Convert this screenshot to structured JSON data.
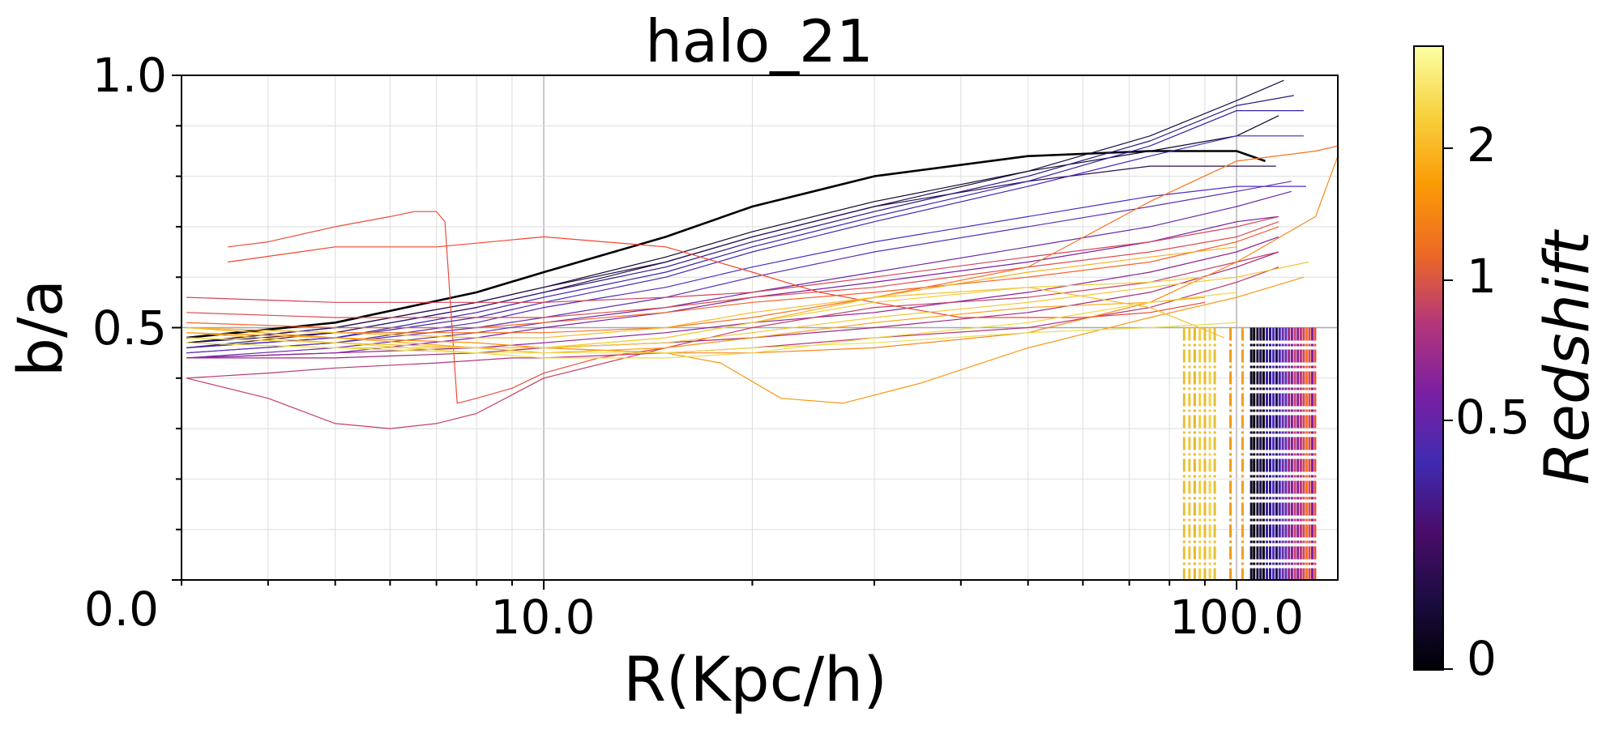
{
  "chart_data": {
    "type": "line",
    "title": "halo_21",
    "xlabel": "R(Kpc/h)",
    "ylabel": "b/a",
    "x_scale": "log",
    "xlim": [
      3.0,
      140.0
    ],
    "ylim": [
      0.0,
      1.0
    ],
    "x_ticks": [
      10.0,
      100.0
    ],
    "x_tick_labels": [
      "10.0",
      "100.0"
    ],
    "y_ticks": [
      0.0,
      0.5,
      1.0
    ],
    "y_tick_labels": [
      "0.0",
      "0.5",
      "1.0"
    ],
    "grid": true,
    "reference_line_y": 0.5,
    "colorbar": {
      "label": "Redshift",
      "tick_labels": [
        "0",
        "0.5",
        "1",
        "2"
      ],
      "range": [
        0,
        2.5
      ],
      "colors": [
        "#000004",
        "#1b0c41",
        "#4a0c6b",
        "#3f2bb0",
        "#7b1fa2",
        "#b5367a",
        "#ed6925",
        "#fb9b06",
        "#f7d13d",
        "#fcffa4"
      ]
    },
    "series": [
      {
        "redshift": 0.0,
        "color": "#000004",
        "width": 2.6,
        "x": [
          3.05,
          5,
          8,
          10,
          15,
          20,
          30,
          50,
          75,
          100,
          110
        ],
        "y": [
          0.48,
          0.51,
          0.57,
          0.61,
          0.68,
          0.74,
          0.8,
          0.84,
          0.85,
          0.85,
          0.83
        ]
      },
      {
        "redshift": 0.05,
        "color": "#0d0829",
        "width": 1.2,
        "x": [
          3.05,
          5,
          8,
          10,
          15,
          20,
          30,
          50,
          75,
          100,
          115
        ],
        "y": [
          0.47,
          0.5,
          0.55,
          0.58,
          0.64,
          0.69,
          0.75,
          0.81,
          0.85,
          0.88,
          0.92
        ]
      },
      {
        "redshift": 0.08,
        "color": "#1b0c41",
        "width": 1.2,
        "x": [
          3.05,
          5,
          8,
          10,
          15,
          20,
          30,
          50,
          75,
          100,
          117
        ],
        "y": [
          0.47,
          0.49,
          0.54,
          0.57,
          0.63,
          0.68,
          0.74,
          0.81,
          0.88,
          0.95,
          0.99
        ]
      },
      {
        "redshift": 0.12,
        "color": "#2a0e55",
        "width": 1.2,
        "x": [
          3.05,
          5,
          8,
          10,
          15,
          20,
          30,
          50,
          75,
          100,
          114
        ],
        "y": [
          0.47,
          0.5,
          0.55,
          0.58,
          0.63,
          0.68,
          0.74,
          0.79,
          0.82,
          0.82,
          0.82
        ]
      },
      {
        "redshift": 0.16,
        "color": "#2b1580",
        "width": 1.2,
        "x": [
          3.05,
          5,
          8,
          10,
          15,
          20,
          30,
          50,
          75,
          100,
          121
        ],
        "y": [
          0.46,
          0.49,
          0.54,
          0.57,
          0.62,
          0.67,
          0.73,
          0.8,
          0.87,
          0.94,
          0.96
        ]
      },
      {
        "redshift": 0.2,
        "color": "#3a20a8",
        "width": 1.2,
        "x": [
          3.05,
          5,
          8,
          10,
          15,
          20,
          30,
          50,
          75,
          100,
          125
        ],
        "y": [
          0.46,
          0.48,
          0.53,
          0.56,
          0.61,
          0.66,
          0.72,
          0.79,
          0.86,
          0.93,
          0.93
        ]
      },
      {
        "redshift": 0.24,
        "color": "#4425b8",
        "width": 1.2,
        "x": [
          3.05,
          5,
          8,
          10,
          15,
          20,
          30,
          50,
          75,
          100,
          125
        ],
        "y": [
          0.46,
          0.48,
          0.52,
          0.55,
          0.6,
          0.65,
          0.71,
          0.78,
          0.84,
          0.88,
          0.88
        ]
      },
      {
        "redshift": 0.28,
        "color": "#4f2bbd",
        "width": 1.2,
        "x": [
          3.05,
          5,
          8,
          10,
          15,
          20,
          30,
          50,
          75,
          100,
          126
        ],
        "y": [
          0.45,
          0.47,
          0.51,
          0.54,
          0.58,
          0.62,
          0.67,
          0.72,
          0.76,
          0.78,
          0.78
        ]
      },
      {
        "redshift": 0.32,
        "color": "#5c2fb5",
        "width": 1.2,
        "x": [
          3.05,
          5,
          8,
          10,
          15,
          20,
          30,
          50,
          75,
          100,
          120
        ],
        "y": [
          0.45,
          0.47,
          0.5,
          0.52,
          0.56,
          0.6,
          0.65,
          0.7,
          0.74,
          0.77,
          0.79
        ]
      },
      {
        "redshift": 0.36,
        "color": "#6b2aa8",
        "width": 1.2,
        "x": [
          3.05,
          5,
          8,
          10,
          15,
          20,
          30,
          50,
          75,
          100,
          120
        ],
        "y": [
          0.44,
          0.46,
          0.49,
          0.51,
          0.54,
          0.57,
          0.61,
          0.66,
          0.7,
          0.74,
          0.77
        ]
      },
      {
        "redshift": 0.4,
        "color": "#7b1fa2",
        "width": 1.2,
        "x": [
          3.05,
          5,
          8,
          10,
          15,
          20,
          30,
          50,
          75,
          100,
          115
        ],
        "y": [
          0.44,
          0.45,
          0.48,
          0.5,
          0.53,
          0.56,
          0.59,
          0.63,
          0.67,
          0.71,
          0.72
        ]
      },
      {
        "redshift": 0.44,
        "color": "#8c2196",
        "width": 1.2,
        "x": [
          3.05,
          5,
          8,
          10,
          15,
          20,
          30,
          50,
          75,
          100,
          115
        ],
        "y": [
          0.44,
          0.45,
          0.46,
          0.47,
          0.49,
          0.51,
          0.53,
          0.57,
          0.61,
          0.65,
          0.68
        ]
      },
      {
        "redshift": 0.48,
        "color": "#a1297f",
        "width": 1.2,
        "x": [
          3.05,
          5,
          8,
          10,
          15,
          20,
          30,
          50,
          75,
          100,
          115
        ],
        "y": [
          0.44,
          0.44,
          0.45,
          0.46,
          0.47,
          0.48,
          0.5,
          0.53,
          0.57,
          0.62,
          0.65
        ]
      },
      {
        "redshift": 0.52,
        "color": "#b5367a",
        "width": 1.2,
        "x": [
          3.05,
          4,
          5,
          7,
          9,
          10,
          15,
          20,
          30,
          50,
          75,
          100,
          115
        ],
        "y": [
          0.4,
          0.41,
          0.42,
          0.43,
          0.44,
          0.44,
          0.45,
          0.46,
          0.48,
          0.5,
          0.54,
          0.59,
          0.62
        ]
      },
      {
        "redshift": 0.56,
        "color": "#c43e6a",
        "width": 1.2,
        "x": [
          3.05,
          4,
          5,
          6,
          7,
          8,
          10,
          15,
          20,
          30,
          50,
          75,
          100,
          115
        ],
        "y": [
          0.4,
          0.36,
          0.31,
          0.3,
          0.31,
          0.33,
          0.4,
          0.46,
          0.5,
          0.54,
          0.56,
          0.59,
          0.63,
          0.65
        ]
      },
      {
        "redshift": 0.6,
        "color": "#d2445a",
        "width": 1.2,
        "x": [
          3.05,
          5,
          8,
          10,
          15,
          20,
          30,
          50,
          75,
          100,
          115
        ],
        "y": [
          0.56,
          0.55,
          0.55,
          0.55,
          0.56,
          0.57,
          0.6,
          0.64,
          0.67,
          0.7,
          0.72
        ]
      },
      {
        "redshift": 0.64,
        "color": "#df4c4c",
        "width": 1.2,
        "x": [
          3.05,
          5,
          8,
          10,
          15,
          20,
          30,
          50,
          75,
          100,
          115
        ],
        "y": [
          0.53,
          0.52,
          0.52,
          0.52,
          0.54,
          0.56,
          0.58,
          0.62,
          0.65,
          0.68,
          0.71
        ]
      },
      {
        "redshift": 0.68,
        "color": "#ea4e3c",
        "width": 1.2,
        "x": [
          3.5,
          4,
          5,
          6,
          6.5,
          7,
          7.2,
          7.5,
          8,
          9,
          10,
          12,
          15,
          20
        ],
        "y": [
          0.66,
          0.67,
          0.7,
          0.72,
          0.73,
          0.73,
          0.71,
          0.35,
          0.36,
          0.38,
          0.41,
          0.44,
          0.46,
          0.48
        ]
      },
      {
        "redshift": 0.72,
        "color": "#f2452d",
        "width": 1.2,
        "x": [
          3.5,
          5,
          7,
          10,
          15,
          20,
          25,
          30,
          40,
          50,
          60,
          75,
          90
        ],
        "y": [
          0.63,
          0.66,
          0.66,
          0.68,
          0.66,
          0.61,
          0.57,
          0.55,
          0.52,
          0.52,
          0.52,
          0.53,
          0.55
        ]
      },
      {
        "redshift": 0.8,
        "color": "#f4632a",
        "width": 1.2,
        "x": [
          3.05,
          5,
          8,
          10,
          15,
          20,
          30,
          50,
          75,
          100,
          115
        ],
        "y": [
          0.51,
          0.5,
          0.5,
          0.51,
          0.53,
          0.55,
          0.57,
          0.6,
          0.63,
          0.67,
          0.7
        ]
      },
      {
        "redshift": 0.88,
        "color": "#f57420",
        "width": 1.2,
        "x": [
          3.05,
          5,
          8,
          10,
          15,
          20,
          30,
          50,
          75,
          100,
          130,
          140
        ],
        "y": [
          0.5,
          0.49,
          0.49,
          0.49,
          0.5,
          0.52,
          0.56,
          0.62,
          0.75,
          0.83,
          0.85,
          0.86
        ]
      },
      {
        "redshift": 0.96,
        "color": "#f7861a",
        "width": 1.2,
        "x": [
          3.05,
          5,
          8,
          10,
          15,
          20,
          30,
          50,
          75,
          100,
          130,
          140
        ],
        "y": [
          0.49,
          0.48,
          0.47,
          0.46,
          0.45,
          0.45,
          0.46,
          0.49,
          0.55,
          0.63,
          0.72,
          0.84
        ]
      },
      {
        "redshift": 1.04,
        "color": "#f89914",
        "width": 1.2,
        "x": [
          3.05,
          5,
          8,
          10,
          15,
          18,
          22,
          27,
          35,
          50,
          75,
          100,
          125
        ],
        "y": [
          0.49,
          0.48,
          0.47,
          0.46,
          0.45,
          0.43,
          0.36,
          0.35,
          0.39,
          0.46,
          0.52,
          0.56,
          0.6
        ]
      },
      {
        "redshift": 1.12,
        "color": "#f9a51a",
        "width": 1.2,
        "x": [
          3.05,
          5,
          8,
          10,
          15,
          20,
          30,
          50,
          75,
          90
        ],
        "y": [
          0.5,
          0.48,
          0.46,
          0.45,
          0.46,
          0.48,
          0.51,
          0.54,
          0.55,
          0.56
        ]
      },
      {
        "redshift": 1.2,
        "color": "#f8b11f",
        "width": 1.2,
        "x": [
          3.05,
          5,
          8,
          10,
          15,
          20,
          30,
          50,
          75,
          100
        ],
        "y": [
          0.49,
          0.47,
          0.46,
          0.46,
          0.48,
          0.51,
          0.56,
          0.61,
          0.64,
          0.66
        ]
      },
      {
        "redshift": 1.28,
        "color": "#f5bd28",
        "width": 1.2,
        "x": [
          3.05,
          5,
          8,
          10,
          15,
          20,
          30,
          50,
          75,
          96
        ],
        "y": [
          0.5,
          0.49,
          0.48,
          0.48,
          0.5,
          0.53,
          0.56,
          0.58,
          0.54,
          0.48
        ]
      },
      {
        "redshift": 1.36,
        "color": "#f3c731",
        "width": 1.2,
        "x": [
          3.05,
          5,
          8,
          10,
          15,
          20,
          30,
          50,
          75,
          100,
          127
        ],
        "y": [
          0.48,
          0.47,
          0.46,
          0.46,
          0.47,
          0.49,
          0.52,
          0.55,
          0.58,
          0.6,
          0.63
        ]
      },
      {
        "redshift": 1.44,
        "color": "#f0d03a",
        "width": 1.2,
        "x": [
          3.05,
          5,
          8,
          10,
          15,
          20,
          30,
          50,
          75,
          90
        ],
        "y": [
          0.47,
          0.46,
          0.46,
          0.46,
          0.48,
          0.51,
          0.55,
          0.58,
          0.59,
          0.6
        ]
      },
      {
        "redshift": 1.52,
        "color": "#eed845",
        "width": 1.2,
        "x": [
          3.05,
          5,
          8,
          10,
          15,
          20,
          30,
          50,
          75,
          100
        ],
        "y": [
          0.48,
          0.47,
          0.45,
          0.44,
          0.44,
          0.45,
          0.48,
          0.51,
          0.55,
          0.57
        ]
      },
      {
        "redshift": 1.6,
        "color": "#e8df4f",
        "width": 1.2,
        "x": [
          3.05,
          5,
          8,
          10,
          15,
          20,
          30,
          50,
          75,
          100
        ],
        "y": [
          0.47,
          0.46,
          0.45,
          0.45,
          0.45,
          0.46,
          0.47,
          0.49,
          0.5,
          0.51
        ]
      }
    ],
    "vertical_markers": [
      {
        "x": 84.0,
        "color": "#e8c033"
      },
      {
        "x": 85.5,
        "color": "#eec537"
      },
      {
        "x": 87.0,
        "color": "#e4b62c"
      },
      {
        "x": 88.5,
        "color": "#f0cf3f"
      },
      {
        "x": 90.0,
        "color": "#e9bb30"
      },
      {
        "x": 91.5,
        "color": "#f2d246"
      },
      {
        "x": 93.0,
        "color": "#e5bf34"
      },
      {
        "x": 98.0,
        "color": "#f19a17"
      },
      {
        "x": 102.0,
        "color": "#f49c1a"
      },
      {
        "x": 105.0,
        "color": "#0d0829"
      },
      {
        "x": 106.0,
        "color": "#000004"
      },
      {
        "x": 107.2,
        "color": "#1b0c41"
      },
      {
        "x": 108.3,
        "color": "#2a0e55"
      },
      {
        "x": 109.4,
        "color": "#000004"
      },
      {
        "x": 110.6,
        "color": "#3a20a8"
      },
      {
        "x": 111.8,
        "color": "#2b1580"
      },
      {
        "x": 113.0,
        "color": "#4f2bbd"
      },
      {
        "x": 114.2,
        "color": "#1b0c41"
      },
      {
        "x": 115.4,
        "color": "#4425b8"
      },
      {
        "x": 116.6,
        "color": "#6b2aa8"
      },
      {
        "x": 117.8,
        "color": "#5c2fb5"
      },
      {
        "x": 119.0,
        "color": "#a1297f"
      },
      {
        "x": 120.2,
        "color": "#7b1fa2"
      },
      {
        "x": 121.4,
        "color": "#c43e6a"
      },
      {
        "x": 122.6,
        "color": "#8c2196"
      },
      {
        "x": 123.8,
        "color": "#b5367a"
      },
      {
        "x": 125.0,
        "color": "#d2445a"
      },
      {
        "x": 126.2,
        "color": "#f57420"
      },
      {
        "x": 127.4,
        "color": "#df4c4c"
      },
      {
        "x": 128.6,
        "color": "#7b1fa2"
      },
      {
        "x": 129.8,
        "color": "#ea4e3c"
      }
    ],
    "marker_ylim": [
      0.0,
      0.5
    ]
  }
}
